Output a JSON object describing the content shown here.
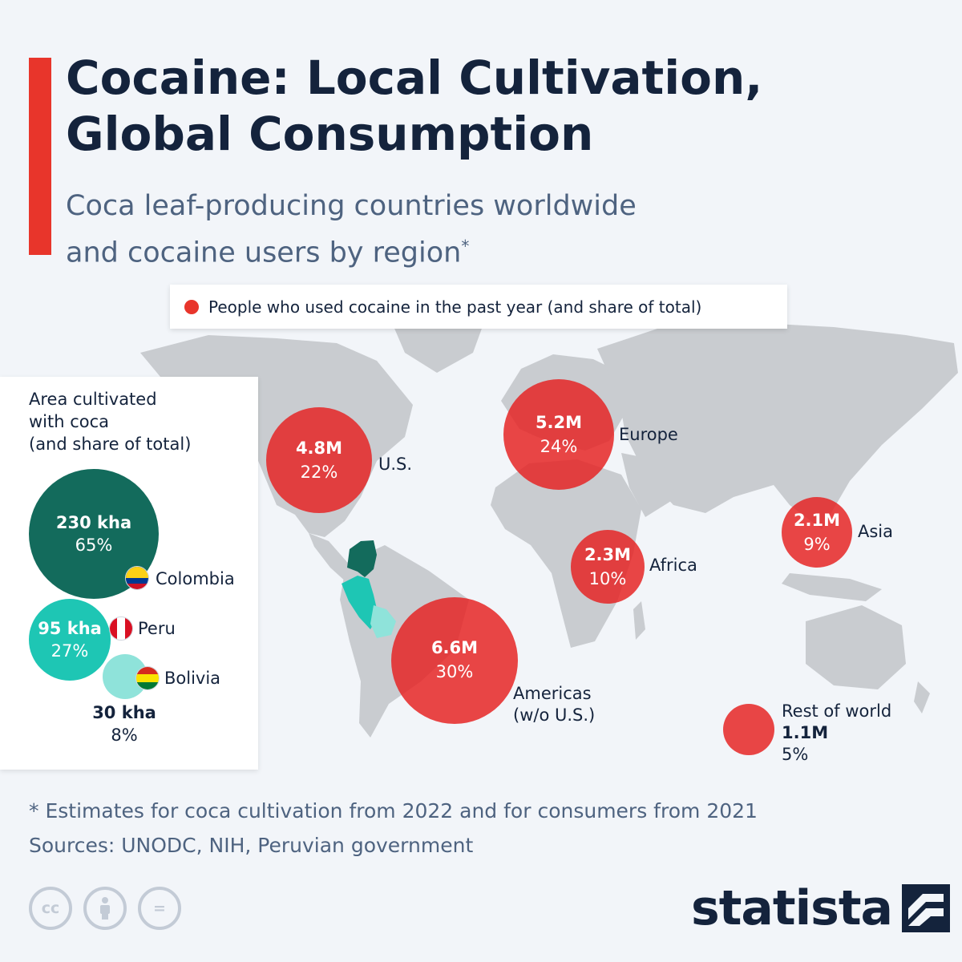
{
  "header": {
    "title_line1": "Cocaine: Local Cultivation,",
    "title_line2": "Global Consumption",
    "subtitle_line1": "Coca leaf-producing countries worldwide",
    "subtitle_line2": "and cocaine users by region",
    "subtitle_marker": "*"
  },
  "legend": {
    "label": "People who used cocaine in the past year (and share of total)",
    "color": "#e8352b"
  },
  "cultivation_panel": {
    "heading_line1": "Area cultivated",
    "heading_line2": "with coca",
    "heading_line3": "(and share of total)",
    "countries": [
      {
        "name": "Colombia",
        "value": "230 kha",
        "share": "65%",
        "color": "#136b5c"
      },
      {
        "name": "Peru",
        "value": "95 kha",
        "share": "27%",
        "color": "#1ec6b4"
      },
      {
        "name": "Bolivia",
        "value": "30 kha",
        "share": "8%",
        "color": "#8fe3da"
      }
    ]
  },
  "regions": [
    {
      "name": "U.S.",
      "value": "4.8M",
      "share": "22%"
    },
    {
      "name": "Europe",
      "value": "5.2M",
      "share": "24%"
    },
    {
      "name": "Asia",
      "value": "2.1M",
      "share": "9%"
    },
    {
      "name": "Africa",
      "value": "2.3M",
      "share": "10%"
    },
    {
      "name": "Americas",
      "name_line2": "(w/o U.S.)",
      "value": "6.6M",
      "share": "30%"
    },
    {
      "name": "Rest of world",
      "value": "1.1M",
      "share": "5%"
    }
  ],
  "chart_data": {
    "type": "bubble-map",
    "title": "Cocaine: Local Cultivation, Global Consumption",
    "subtitle": "Coca leaf-producing countries worldwide and cocaine users by region*",
    "series": [
      {
        "name": "People who used cocaine in the past year (and share of total)",
        "categories": [
          "U.S.",
          "Europe",
          "Asia",
          "Africa",
          "Americas (w/o U.S.)",
          "Rest of world"
        ],
        "values_millions": [
          4.8,
          5.2,
          2.1,
          2.3,
          6.6,
          1.1
        ],
        "share_percent": [
          22,
          24,
          9,
          10,
          30,
          5
        ]
      },
      {
        "name": "Area cultivated with coca (and share of total)",
        "categories": [
          "Colombia",
          "Peru",
          "Bolivia"
        ],
        "values_kha": [
          230,
          95,
          30
        ],
        "share_percent": [
          65,
          27,
          8
        ]
      }
    ]
  },
  "footnote": {
    "note": "* Estimates for coca cultivation from 2022 and for consumers from 2021",
    "sources": "Sources: UNODC, NIH, Peruvian government"
  },
  "license_icons": [
    "cc-icon",
    "attribution-icon",
    "no-derivatives-icon"
  ],
  "license_text": {
    "cc": "cc",
    "nd": "="
  },
  "brand": {
    "name": "statista",
    "color": "#14233c"
  },
  "colors": {
    "accent": "#e8352b",
    "map_land": "#c9ccd0",
    "background": "#f2f5f9"
  }
}
